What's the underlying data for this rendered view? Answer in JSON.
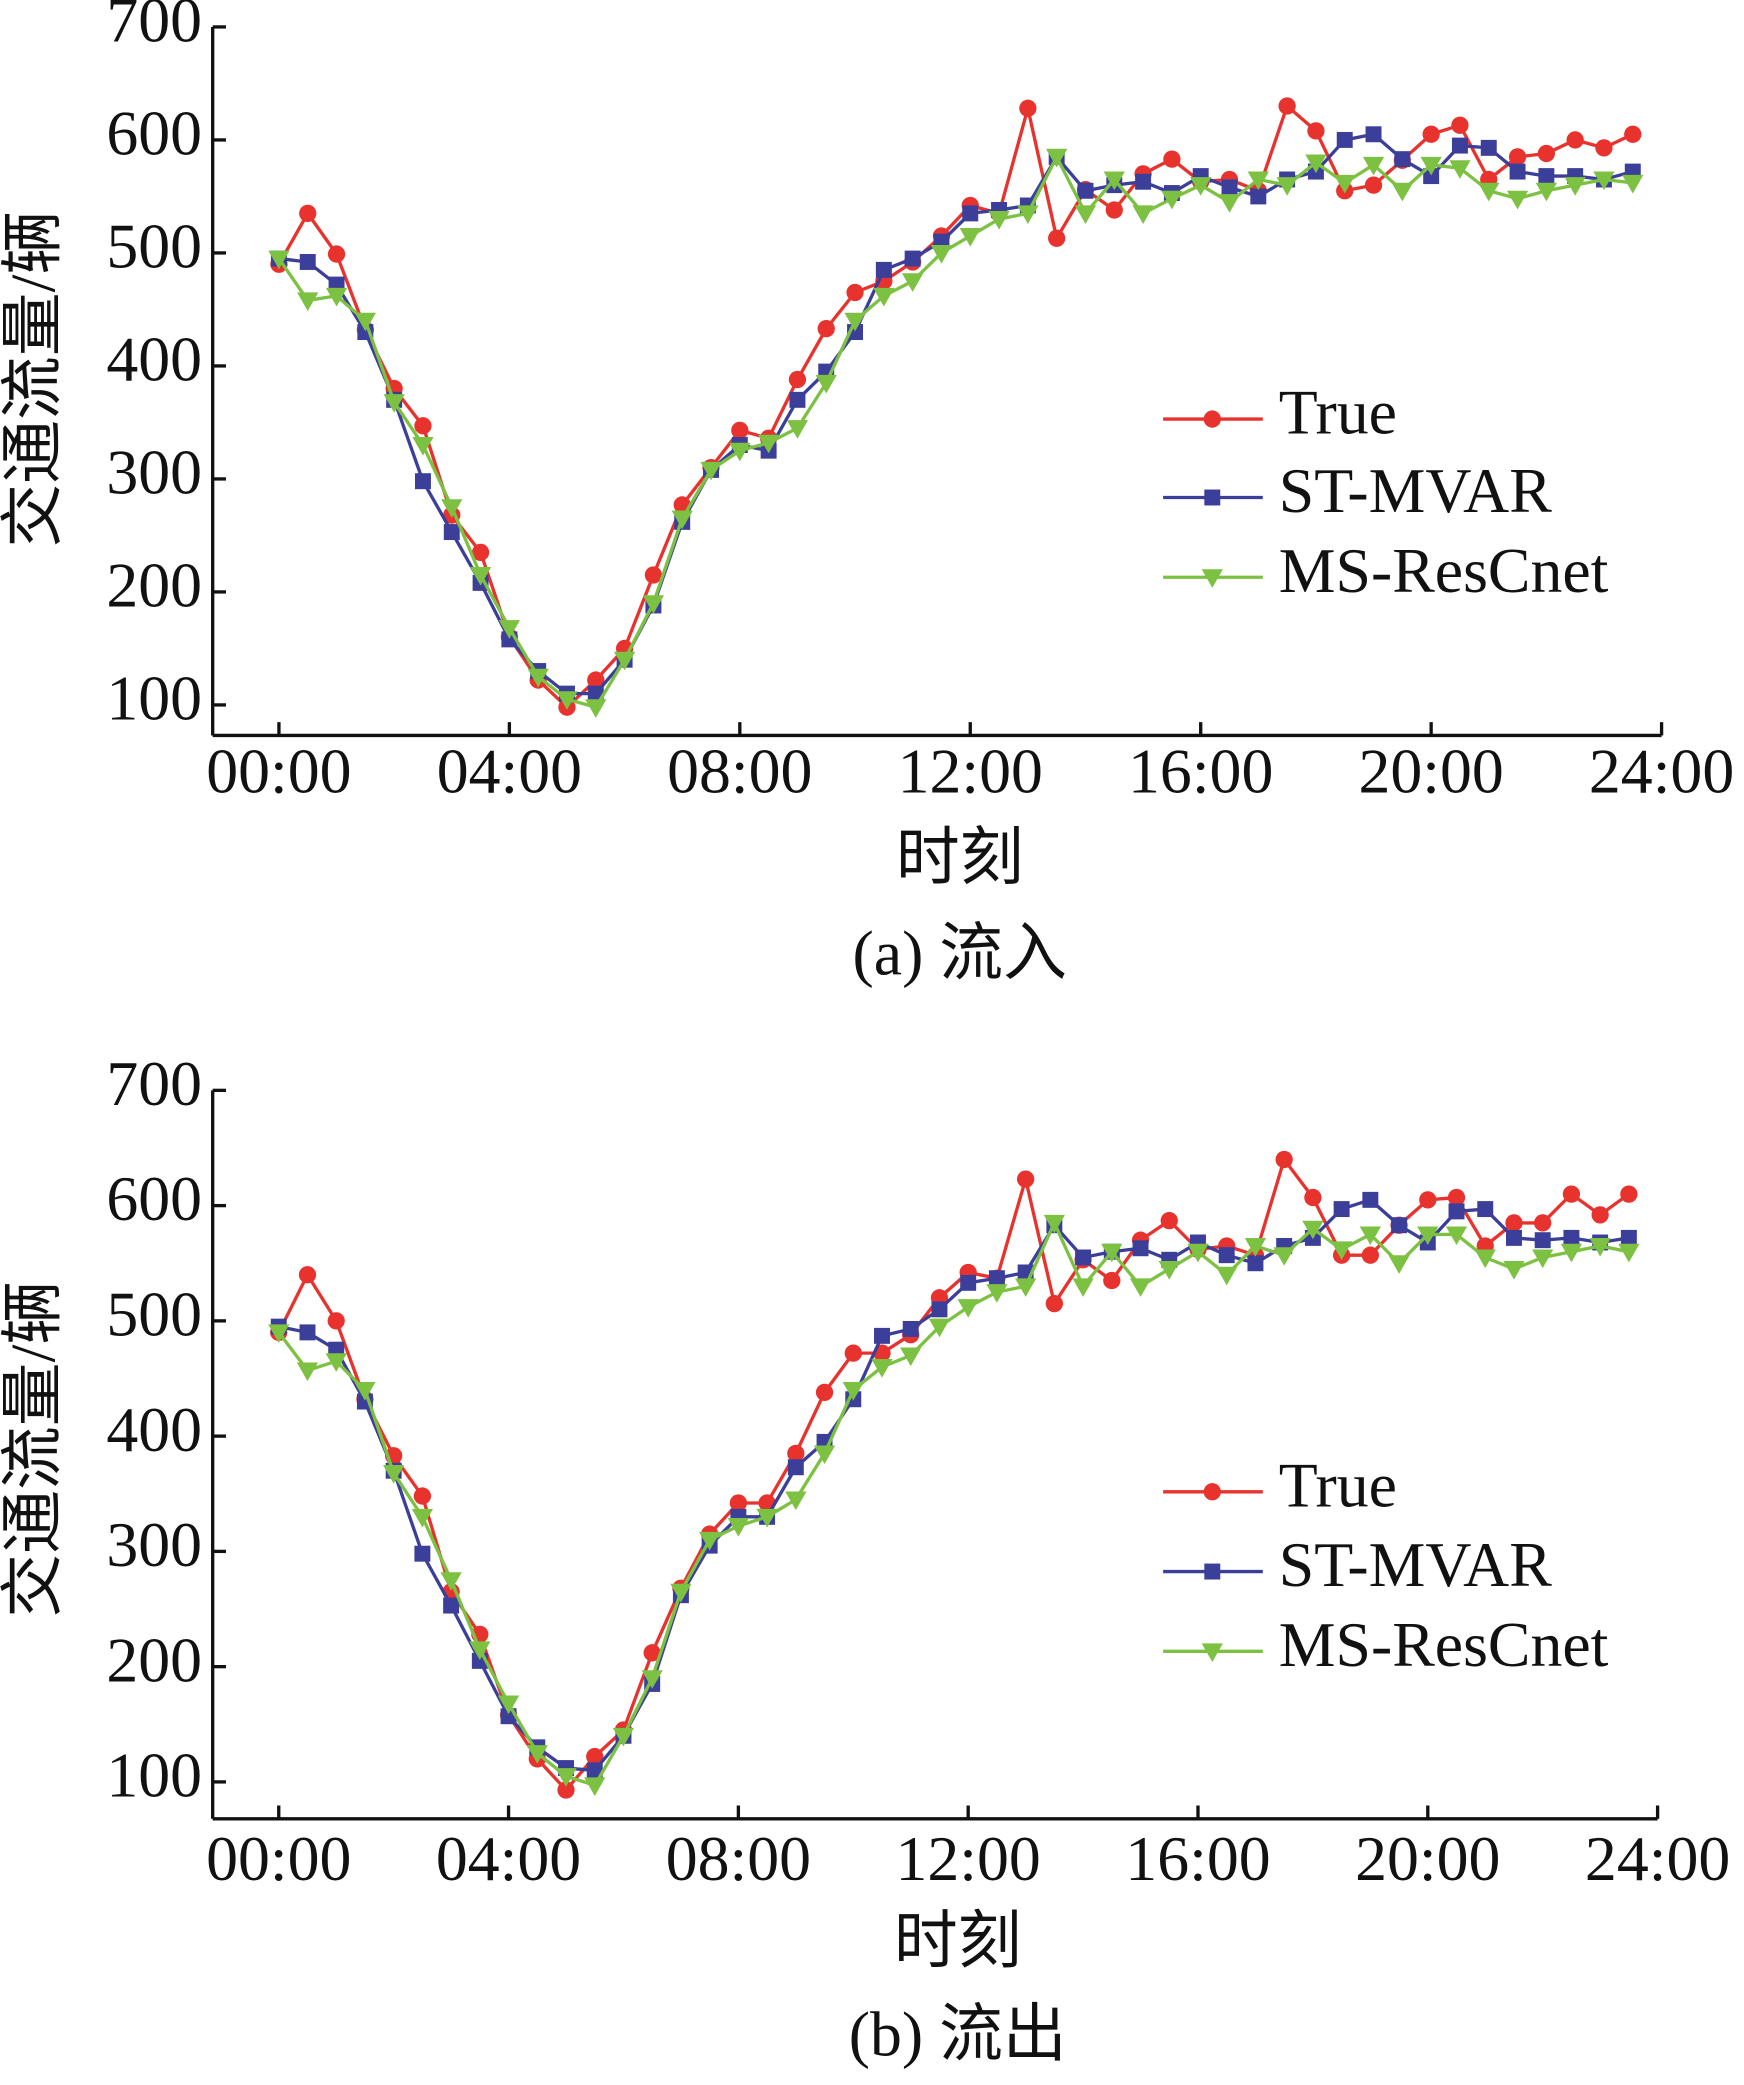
{
  "chart_data": [
    {
      "type": "line",
      "caption": "(a) 流入",
      "y_label": "交通流量/辆",
      "x_label": "时刻",
      "x": [
        0,
        0.5,
        1,
        1.5,
        2,
        2.5,
        3,
        3.5,
        4,
        4.5,
        5,
        5.5,
        6,
        6.5,
        7,
        7.5,
        8,
        8.5,
        9,
        9.5,
        10,
        10.5,
        11,
        11.5,
        12,
        12.5,
        13,
        13.5,
        14,
        14.5,
        15,
        15.5,
        16,
        16.5,
        17,
        17.5,
        18,
        18.5,
        19,
        19.5,
        20,
        20.5,
        21,
        21.5,
        22,
        22.5,
        23,
        23.5
      ],
      "xlim": [
        -1.15,
        24
      ],
      "xticks": [
        {
          "value": 0,
          "label": "00:00"
        },
        {
          "value": 4,
          "label": "04:00"
        },
        {
          "value": 8,
          "label": "08:00"
        },
        {
          "value": 12,
          "label": "12:00"
        },
        {
          "value": 16,
          "label": "16:00"
        },
        {
          "value": 20,
          "label": "20:00"
        },
        {
          "value": 24,
          "label": "24:00"
        }
      ],
      "ylim": [
        73,
        700
      ],
      "yticks": [
        100,
        200,
        300,
        400,
        500,
        600,
        700
      ],
      "legend": "center right",
      "series": [
        {
          "name": "True",
          "color": "#e8322d",
          "marker": "circle",
          "values": [
            490,
            535,
            499,
            432,
            380,
            347,
            268,
            235,
            160,
            122,
            98,
            122,
            150,
            215,
            277,
            310,
            343,
            336,
            388,
            433,
            465,
            475,
            492,
            515,
            542,
            535,
            628,
            513,
            556,
            538,
            570,
            583,
            563,
            565,
            555,
            630,
            608,
            555,
            560,
            582,
            605,
            613,
            565,
            585,
            588,
            600,
            593,
            605
          ]
        },
        {
          "name": "ST-MVAR",
          "color": "#3b3f9a",
          "marker": "square",
          "values": [
            495,
            492,
            472,
            430,
            370,
            298,
            253,
            208,
            158,
            130,
            110,
            110,
            140,
            188,
            262,
            308,
            330,
            325,
            370,
            395,
            430,
            485,
            495,
            510,
            535,
            538,
            542,
            585,
            555,
            560,
            563,
            553,
            568,
            558,
            550,
            565,
            572,
            600,
            605,
            583,
            568,
            595,
            593,
            572,
            568,
            568,
            565,
            572
          ]
        },
        {
          "name": "MS-ResCnet",
          "color": "#7dc142",
          "marker": "triangle-down",
          "values": [
            495,
            458,
            462,
            440,
            368,
            330,
            275,
            215,
            168,
            125,
            105,
            98,
            140,
            190,
            265,
            308,
            325,
            332,
            345,
            385,
            440,
            462,
            475,
            500,
            515,
            530,
            535,
            585,
            535,
            565,
            535,
            548,
            560,
            545,
            565,
            560,
            580,
            562,
            578,
            555,
            578,
            575,
            555,
            548,
            555,
            560,
            565,
            562
          ]
        }
      ]
    },
    {
      "type": "line",
      "caption": "(b) 流出",
      "y_label": "交通流量/辆",
      "x_label": "时刻",
      "x": [
        0,
        0.5,
        1,
        1.5,
        2,
        2.5,
        3,
        3.5,
        4,
        4.5,
        5,
        5.5,
        6,
        6.5,
        7,
        7.5,
        8,
        8.5,
        9,
        9.5,
        10,
        10.5,
        11,
        11.5,
        12,
        12.5,
        13,
        13.5,
        14,
        14.5,
        15,
        15.5,
        16,
        16.5,
        17,
        17.5,
        18,
        18.5,
        19,
        19.5,
        20,
        20.5,
        21,
        21.5,
        22,
        22.5,
        23,
        23.5
      ],
      "xlim": [
        -1.15,
        24
      ],
      "xticks": [
        {
          "value": 0,
          "label": "00:00"
        },
        {
          "value": 4,
          "label": "04:00"
        },
        {
          "value": 8,
          "label": "08:00"
        },
        {
          "value": 12,
          "label": "12:00"
        },
        {
          "value": 16,
          "label": "16:00"
        },
        {
          "value": 20,
          "label": "20:00"
        },
        {
          "value": 24,
          "label": "24:00"
        }
      ],
      "ylim": [
        68,
        700
      ],
      "yticks": [
        100,
        200,
        300,
        400,
        500,
        600,
        700
      ],
      "legend": "center right",
      "series": [
        {
          "name": "True",
          "color": "#e8322d",
          "marker": "circle",
          "values": [
            490,
            540,
            500,
            432,
            383,
            348,
            265,
            228,
            158,
            120,
            93,
            122,
            145,
            212,
            268,
            315,
            342,
            342,
            385,
            438,
            472,
            472,
            488,
            520,
            542,
            537,
            623,
            515,
            553,
            535,
            570,
            587,
            562,
            565,
            557,
            640,
            607,
            557,
            557,
            583,
            605,
            607,
            565,
            585,
            585,
            610,
            592,
            610
          ]
        },
        {
          "name": "ST-MVAR",
          "color": "#3b3f9a",
          "marker": "square",
          "values": [
            495,
            490,
            475,
            430,
            370,
            298,
            253,
            205,
            157,
            130,
            112,
            110,
            140,
            185,
            262,
            305,
            330,
            330,
            373,
            395,
            432,
            487,
            493,
            510,
            533,
            537,
            542,
            583,
            555,
            560,
            563,
            553,
            568,
            557,
            550,
            565,
            572,
            597,
            605,
            583,
            568,
            595,
            597,
            572,
            570,
            572,
            568,
            572
          ]
        },
        {
          "name": "MS-ResCnet",
          "color": "#7dc142",
          "marker": "triangle-down",
          "values": [
            490,
            457,
            465,
            440,
            368,
            330,
            275,
            215,
            168,
            125,
            105,
            97,
            140,
            190,
            265,
            310,
            322,
            330,
            345,
            385,
            440,
            460,
            470,
            495,
            512,
            525,
            530,
            585,
            530,
            560,
            530,
            545,
            560,
            540,
            565,
            557,
            580,
            562,
            575,
            550,
            575,
            575,
            555,
            545,
            555,
            560,
            565,
            560
          ]
        }
      ]
    }
  ]
}
